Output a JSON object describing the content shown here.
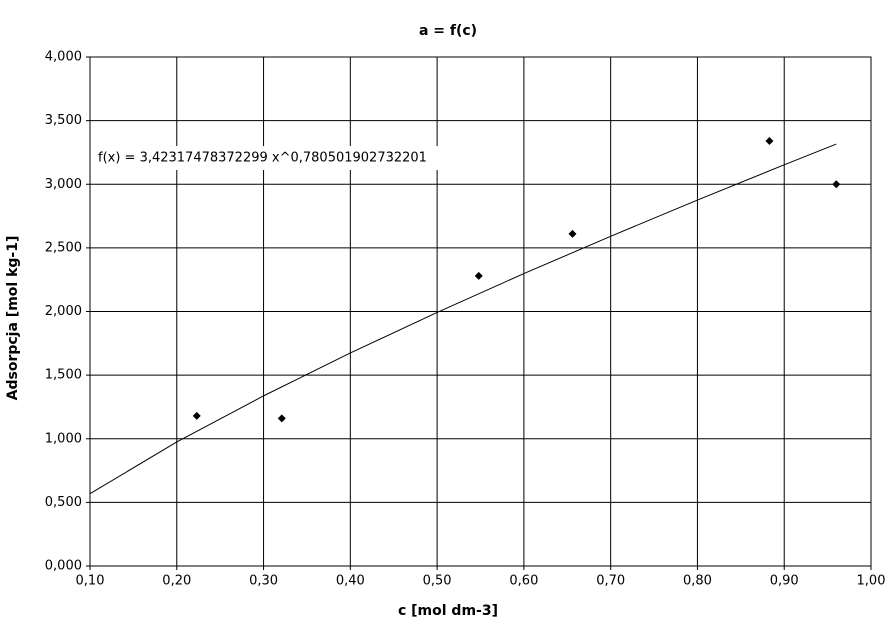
{
  "chart_data": {
    "type": "scatter",
    "title": "a = f(c)",
    "xlabel": "c [mol dm-3]",
    "ylabel": "Adsorpcja [mol kg-1]",
    "series": [
      {
        "x": [
          0.223,
          0.321,
          0.548,
          0.656,
          0.883,
          0.96
        ],
        "values": [
          1.18,
          1.16,
          2.28,
          2.61,
          3.34,
          3.0
        ],
        "color": "#000000"
      }
    ],
    "trendline": {
      "x": [
        0.1,
        0.2,
        0.3,
        0.4,
        0.5,
        0.6,
        0.7,
        0.8,
        0.9,
        0.96
      ],
      "values": [
        0.568,
        0.975,
        1.337,
        1.674,
        1.993,
        2.298,
        2.591,
        2.876,
        3.153,
        3.316
      ],
      "color": "#000000",
      "label": "f(x) = 3,42317478372299 x^0,780501902732201"
    },
    "xlim": [
      0.1,
      1.0
    ],
    "xticks": [
      {
        "value": 0.1,
        "label": "0,10"
      },
      {
        "value": 0.2,
        "label": "0,20"
      },
      {
        "value": 0.3,
        "label": "0,30"
      },
      {
        "value": 0.4,
        "label": "0,40"
      },
      {
        "value": 0.5,
        "label": "0,50"
      },
      {
        "value": 0.6,
        "label": "0,60"
      },
      {
        "value": 0.7,
        "label": "0,70"
      },
      {
        "value": 0.8,
        "label": "0,80"
      },
      {
        "value": 0.9,
        "label": "0,90"
      },
      {
        "value": 1.0,
        "label": "1,00"
      }
    ],
    "ylim": [
      0,
      4
    ],
    "yticks": [
      {
        "value": 0,
        "label": "0,000"
      },
      {
        "value": 0.5,
        "label": "0,500"
      },
      {
        "value": 1,
        "label": "1,000"
      },
      {
        "value": 1.5,
        "label": "1,500"
      },
      {
        "value": 2,
        "label": "2,000"
      },
      {
        "value": 2.5,
        "label": "2,500"
      },
      {
        "value": 3,
        "label": "3,000"
      },
      {
        "value": 3.5,
        "label": "3,500"
      },
      {
        "value": 4,
        "label": "4,000"
      }
    ],
    "grid": true
  }
}
